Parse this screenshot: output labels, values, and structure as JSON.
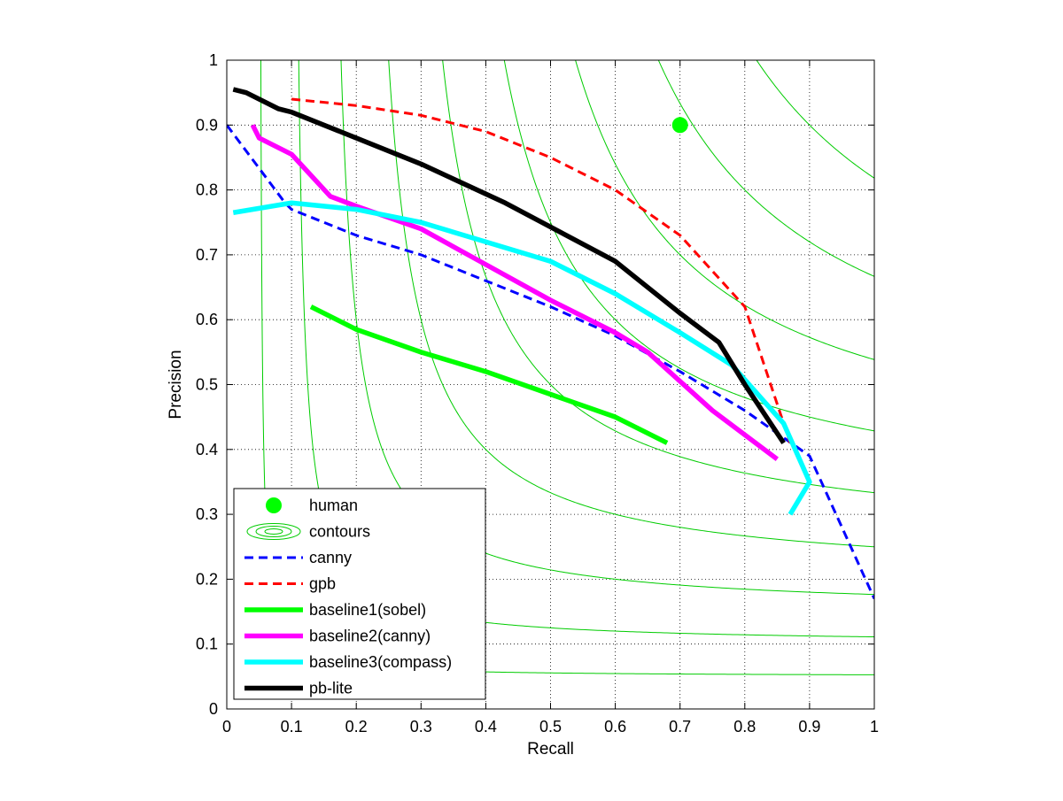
{
  "chart_data": {
    "type": "line",
    "xlabel": "Recall",
    "ylabel": "Precision",
    "xlim": [
      0,
      1
    ],
    "ylim": [
      0,
      1
    ],
    "xticks": [
      "0",
      "0.1",
      "0.2",
      "0.3",
      "0.4",
      "0.5",
      "0.6",
      "0.7",
      "0.8",
      "0.9",
      "1"
    ],
    "yticks": [
      "0",
      "0.1",
      "0.2",
      "0.3",
      "0.4",
      "0.5",
      "0.6",
      "0.7",
      "0.8",
      "0.9",
      "1"
    ],
    "grid": true,
    "legend_position": "bottom-left",
    "contours": {
      "name": "contours",
      "color": "#00cc00",
      "f_levels": [
        0.1,
        0.2,
        0.3,
        0.4,
        0.5,
        0.6,
        0.7,
        0.8,
        0.9
      ]
    },
    "human": {
      "name": "human",
      "color": "#00ff00",
      "x": 0.7,
      "y": 0.9
    },
    "series": [
      {
        "name": "canny",
        "color": "#0000ff",
        "style": "dashed",
        "points": [
          [
            0.0,
            0.9
          ],
          [
            0.09,
            0.78
          ],
          [
            0.1,
            0.77
          ],
          [
            0.2,
            0.73
          ],
          [
            0.3,
            0.7
          ],
          [
            0.4,
            0.66
          ],
          [
            0.5,
            0.62
          ],
          [
            0.6,
            0.575
          ],
          [
            0.7,
            0.52
          ],
          [
            0.8,
            0.46
          ],
          [
            0.9,
            0.39
          ],
          [
            1.0,
            0.17
          ]
        ]
      },
      {
        "name": "gpb",
        "color": "#ff0000",
        "style": "dashed",
        "points": [
          [
            0.1,
            0.94
          ],
          [
            0.2,
            0.93
          ],
          [
            0.3,
            0.915
          ],
          [
            0.4,
            0.89
          ],
          [
            0.5,
            0.85
          ],
          [
            0.6,
            0.8
          ],
          [
            0.7,
            0.73
          ],
          [
            0.8,
            0.62
          ],
          [
            0.86,
            0.44
          ],
          [
            0.87,
            0.41
          ]
        ]
      },
      {
        "name": "baseline1(sobel)",
        "color": "#00ff00",
        "style": "solid",
        "points": [
          [
            0.13,
            0.62
          ],
          [
            0.2,
            0.585
          ],
          [
            0.3,
            0.55
          ],
          [
            0.4,
            0.52
          ],
          [
            0.5,
            0.485
          ],
          [
            0.6,
            0.45
          ],
          [
            0.68,
            0.41
          ]
        ]
      },
      {
        "name": "baseline2(canny)",
        "color": "#ff00ff",
        "style": "solid",
        "points": [
          [
            0.04,
            0.9
          ],
          [
            0.05,
            0.88
          ],
          [
            0.1,
            0.855
          ],
          [
            0.16,
            0.79
          ],
          [
            0.2,
            0.775
          ],
          [
            0.3,
            0.74
          ],
          [
            0.4,
            0.685
          ],
          [
            0.5,
            0.63
          ],
          [
            0.6,
            0.58
          ],
          [
            0.65,
            0.55
          ],
          [
            0.75,
            0.46
          ],
          [
            0.85,
            0.385
          ]
        ]
      },
      {
        "name": "baseline3(compass)",
        "color": "#00ffff",
        "style": "solid",
        "points": [
          [
            0.01,
            0.765
          ],
          [
            0.1,
            0.78
          ],
          [
            0.2,
            0.77
          ],
          [
            0.3,
            0.75
          ],
          [
            0.4,
            0.72
          ],
          [
            0.5,
            0.69
          ],
          [
            0.6,
            0.64
          ],
          [
            0.7,
            0.58
          ],
          [
            0.78,
            0.53
          ],
          [
            0.86,
            0.44
          ],
          [
            0.9,
            0.35
          ],
          [
            0.87,
            0.3
          ]
        ]
      },
      {
        "name": "pb-lite",
        "color": "#000000",
        "style": "solid",
        "points": [
          [
            0.01,
            0.955
          ],
          [
            0.03,
            0.95
          ],
          [
            0.08,
            0.925
          ],
          [
            0.1,
            0.92
          ],
          [
            0.2,
            0.88
          ],
          [
            0.3,
            0.84
          ],
          [
            0.43,
            0.78
          ],
          [
            0.6,
            0.69
          ],
          [
            0.7,
            0.61
          ],
          [
            0.76,
            0.565
          ],
          [
            0.8,
            0.5
          ],
          [
            0.86,
            0.41
          ]
        ]
      }
    ]
  }
}
